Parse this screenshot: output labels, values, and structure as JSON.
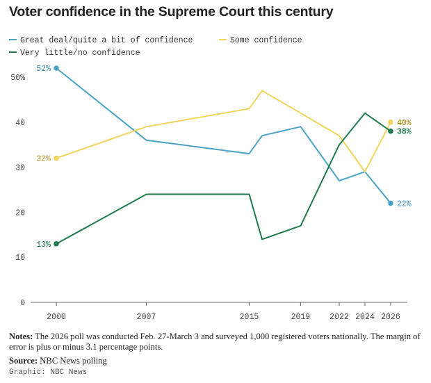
{
  "chart_data": {
    "type": "line",
    "title": "Voter confidence in the Supreme Court this century",
    "x": [
      2000,
      2007,
      2015,
      2016,
      2019,
      2022,
      2024,
      2026
    ],
    "x_ticks": [
      "2000",
      "2007",
      "2015",
      "2019",
      "2022",
      "2024",
      "2026"
    ],
    "y_ticks": [
      "0",
      "10",
      "20",
      "30",
      "40",
      "50%"
    ],
    "ylim": [
      0,
      52
    ],
    "grid": false,
    "legend_position": "top-left",
    "series": [
      {
        "name": "Great deal/quite a bit of confidence",
        "color": "#4ba3c7",
        "values": [
          52,
          36,
          33,
          37,
          39,
          27,
          29,
          22
        ],
        "start_label": "52%",
        "end_label": "22%"
      },
      {
        "name": "Some confidence",
        "color": "#f2d45c",
        "values": [
          32,
          39,
          43,
          47,
          42,
          37,
          29,
          40
        ],
        "start_label": "32%",
        "end_label": "40%"
      },
      {
        "name": "Very little/no confidence",
        "color": "#1f7a4d",
        "values": [
          13,
          24,
          24,
          14,
          17,
          35,
          42,
          38
        ],
        "start_label": "13%",
        "end_label": "38%"
      }
    ],
    "label_colors": {
      "Great deal/quite a bit of confidence": "#3a95bd",
      "Some confidence": "#b8962a",
      "Very little/no confidence": "#1f7a4d"
    }
  },
  "notes": {
    "label": "Notes:",
    "text": " The 2026 poll was conducted Feb. 27-March 3 and surveyed 1,000 registered voters nationally. The margin of error is plus or minus 3.1 percentage points."
  },
  "source": {
    "label": "Source:",
    "text": " NBC News polling"
  },
  "credit": "Graphic: NBC News"
}
